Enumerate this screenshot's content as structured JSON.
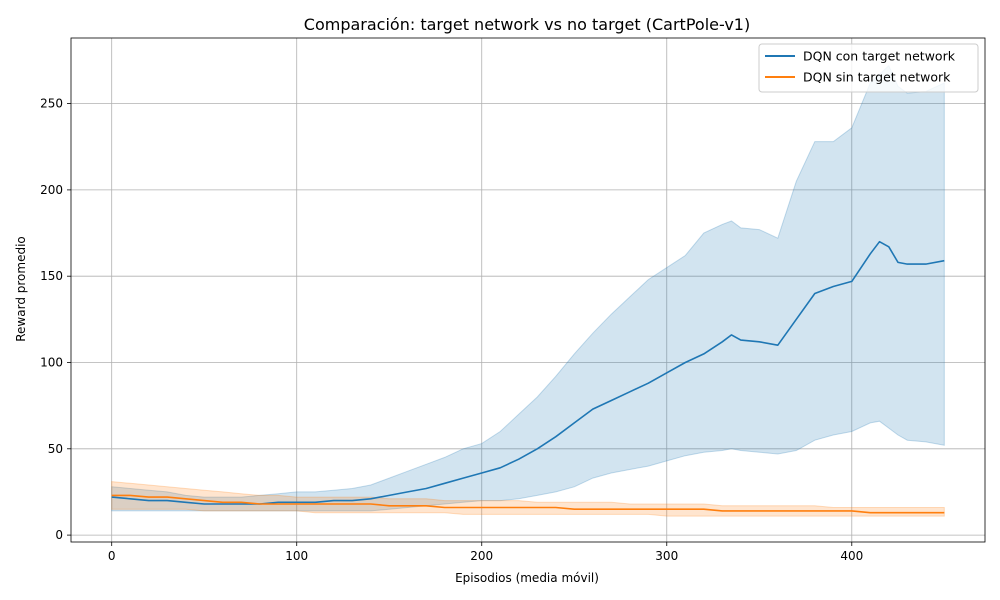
{
  "chart_data": {
    "type": "line",
    "title": "Comparación: target network vs no target (CartPole-v1)",
    "xlabel": "Episodios (media móvil)",
    "ylabel": "Reward promedio",
    "xlim": [
      -22,
      472
    ],
    "ylim": [
      -4,
      288
    ],
    "xticks": [
      0,
      100,
      200,
      300,
      400
    ],
    "yticks": [
      0,
      50,
      100,
      150,
      200,
      250
    ],
    "grid": true,
    "legend_position": "top-right",
    "series": [
      {
        "name": "DQN con target network",
        "color": "#1f77b4",
        "band_color": "#1f77b4",
        "x": [
          0,
          10,
          20,
          30,
          40,
          50,
          60,
          70,
          80,
          90,
          100,
          110,
          120,
          130,
          140,
          150,
          160,
          170,
          180,
          190,
          200,
          210,
          220,
          230,
          240,
          250,
          260,
          270,
          280,
          290,
          300,
          310,
          320,
          330,
          335,
          340,
          350,
          360,
          370,
          380,
          390,
          400,
          410,
          415,
          420,
          425,
          430,
          440,
          450
        ],
        "mean": [
          22,
          21,
          20,
          20,
          19,
          18,
          18,
          18,
          18,
          19,
          19,
          19,
          20,
          20,
          21,
          23,
          25,
          27,
          30,
          33,
          36,
          39,
          44,
          50,
          57,
          65,
          73,
          78,
          83,
          88,
          94,
          100,
          105,
          112,
          116,
          113,
          112,
          110,
          125,
          140,
          144,
          147,
          163,
          170,
          167,
          158,
          157,
          157,
          159
        ],
        "upper": [
          28,
          27,
          26,
          25,
          23,
          22,
          22,
          22,
          23,
          24,
          25,
          25,
          26,
          27,
          29,
          33,
          37,
          41,
          45,
          50,
          53,
          60,
          70,
          80,
          92,
          105,
          117,
          128,
          138,
          148,
          155,
          162,
          175,
          180,
          182,
          178,
          177,
          172,
          205,
          228,
          228,
          236,
          262,
          267,
          272,
          260,
          256,
          257,
          262
        ],
        "lower": [
          14,
          14,
          14,
          14,
          14,
          14,
          14,
          14,
          14,
          14,
          14,
          14,
          14,
          14,
          14,
          15,
          16,
          17,
          18,
          19,
          20,
          20,
          21,
          23,
          25,
          28,
          33,
          36,
          38,
          40,
          43,
          46,
          48,
          49,
          50,
          49,
          48,
          47,
          49,
          55,
          58,
          60,
          65,
          66,
          62,
          58,
          55,
          54,
          52
        ]
      },
      {
        "name": "DQN sin target network",
        "color": "#ff7f0e",
        "band_color": "#ff7f0e",
        "x": [
          0,
          10,
          20,
          30,
          40,
          50,
          60,
          70,
          80,
          90,
          100,
          110,
          120,
          130,
          140,
          150,
          160,
          170,
          180,
          190,
          200,
          210,
          220,
          230,
          240,
          250,
          260,
          270,
          280,
          290,
          300,
          310,
          320,
          330,
          340,
          350,
          360,
          370,
          380,
          390,
          400,
          410,
          420,
          430,
          440,
          450
        ],
        "mean": [
          23,
          23,
          22,
          22,
          21,
          20,
          19,
          19,
          18,
          18,
          18,
          18,
          18,
          18,
          18,
          17,
          17,
          17,
          16,
          16,
          16,
          16,
          16,
          16,
          16,
          15,
          15,
          15,
          15,
          15,
          15,
          15,
          15,
          14,
          14,
          14,
          14,
          14,
          14,
          14,
          14,
          13,
          13,
          13,
          13,
          13
        ],
        "upper": [
          31,
          30,
          29,
          28,
          27,
          26,
          25,
          24,
          23,
          23,
          22,
          22,
          22,
          22,
          22,
          21,
          21,
          21,
          20,
          20,
          20,
          20,
          20,
          19,
          19,
          19,
          19,
          19,
          18,
          18,
          18,
          18,
          18,
          17,
          17,
          17,
          17,
          17,
          17,
          16,
          16,
          16,
          16,
          16,
          16,
          16
        ],
        "lower": [
          15,
          15,
          15,
          15,
          15,
          14,
          14,
          14,
          14,
          14,
          14,
          13,
          13,
          13,
          13,
          13,
          13,
          13,
          13,
          12,
          12,
          12,
          12,
          12,
          12,
          12,
          12,
          12,
          12,
          12,
          11,
          11,
          11,
          11,
          11,
          11,
          11,
          11,
          11,
          11,
          11,
          11,
          11,
          11,
          11,
          11
        ]
      }
    ]
  }
}
